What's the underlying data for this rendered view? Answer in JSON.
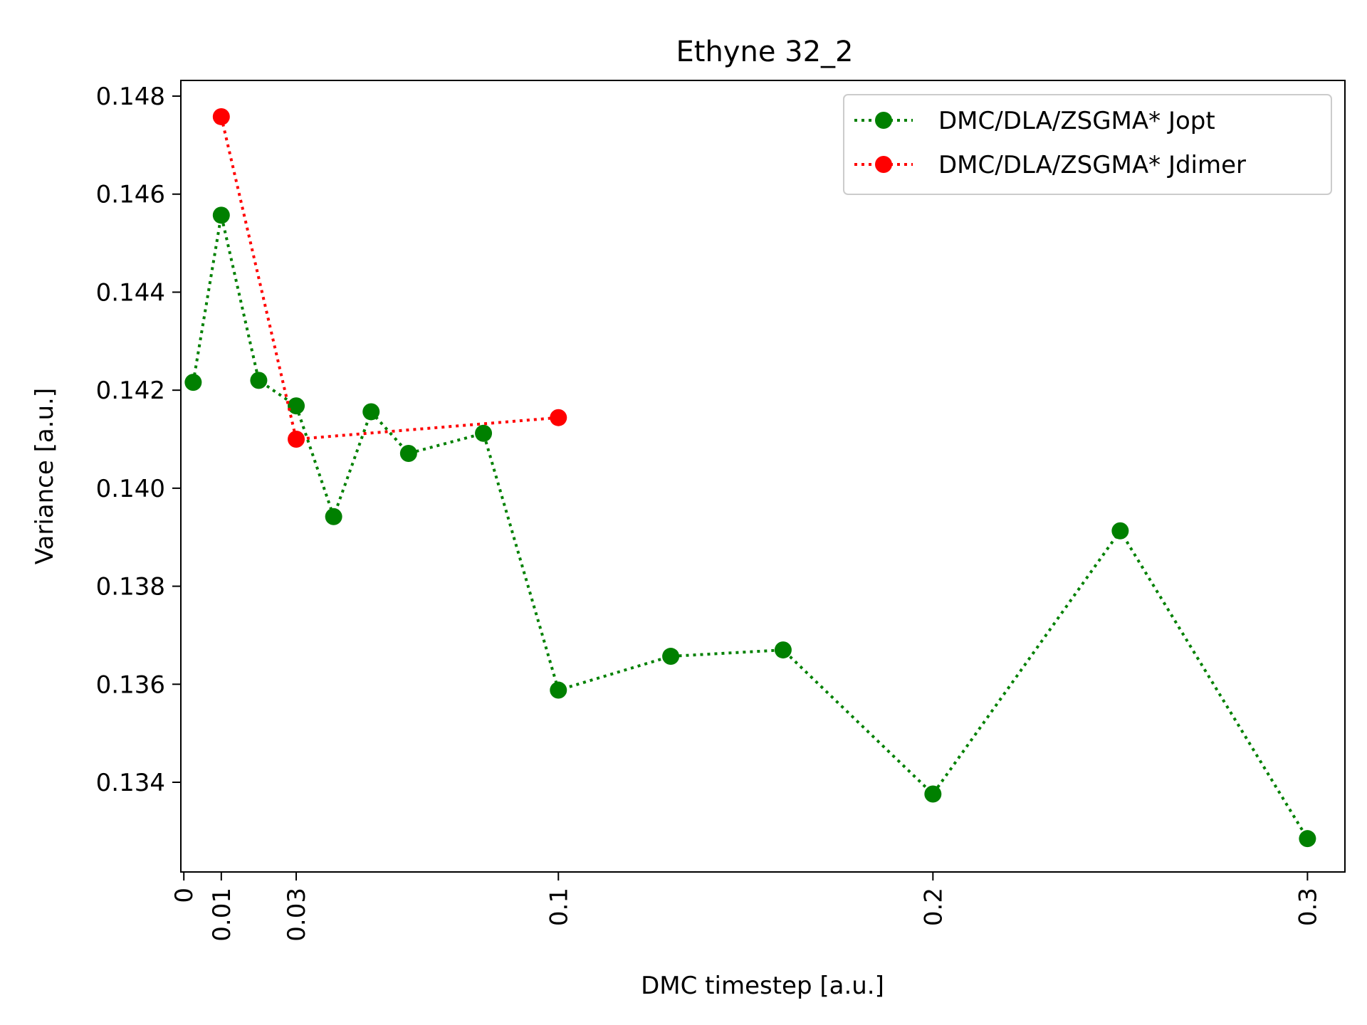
{
  "chart_data": {
    "type": "line",
    "title": "Ethyne 32_2",
    "xlabel": "DMC timestep [a.u.]",
    "ylabel": "Variance [a.u.]",
    "xlim": [
      -0.0008,
      0.31
    ],
    "ylim": [
      0.13217,
      0.14832
    ],
    "xticks": [
      {
        "value": 0,
        "label": "0"
      },
      {
        "value": 0.01,
        "label": "0.01"
      },
      {
        "value": 0.03,
        "label": "0.03"
      },
      {
        "value": 0.1,
        "label": "0.1"
      },
      {
        "value": 0.2,
        "label": "0.2"
      },
      {
        "value": 0.3,
        "label": "0.3"
      }
    ],
    "yticks": [
      {
        "value": 0.134,
        "label": "0.134"
      },
      {
        "value": 0.136,
        "label": "0.136"
      },
      {
        "value": 0.138,
        "label": "0.138"
      },
      {
        "value": 0.14,
        "label": "0.140"
      },
      {
        "value": 0.142,
        "label": "0.142"
      },
      {
        "value": 0.144,
        "label": "0.144"
      },
      {
        "value": 0.146,
        "label": "0.146"
      },
      {
        "value": 0.148,
        "label": "0.148"
      }
    ],
    "grid": false,
    "legend_position": "top-right",
    "series": [
      {
        "name": "DMC/DLA/ZSGMA* Jopt",
        "color": "#008000",
        "line_style": "dotted",
        "marker": "circle",
        "x": [
          0.0025,
          0.01,
          0.02,
          0.03,
          0.04,
          0.05,
          0.06,
          0.08,
          0.1,
          0.13,
          0.16,
          0.2,
          0.25,
          0.3
        ],
        "y": [
          0.14216,
          0.14557,
          0.1422,
          0.14168,
          0.13942,
          0.14156,
          0.14071,
          0.14112,
          0.13588,
          0.13657,
          0.1367,
          0.13376,
          0.13913,
          0.13285
        ]
      },
      {
        "name": "DMC/DLA/ZSGMA* Jdimer",
        "color": "#ff0000",
        "line_style": "dotted",
        "marker": "circle",
        "x": [
          0.01,
          0.03,
          0.1
        ],
        "y": [
          0.14758,
          0.141,
          0.14144
        ]
      }
    ]
  }
}
